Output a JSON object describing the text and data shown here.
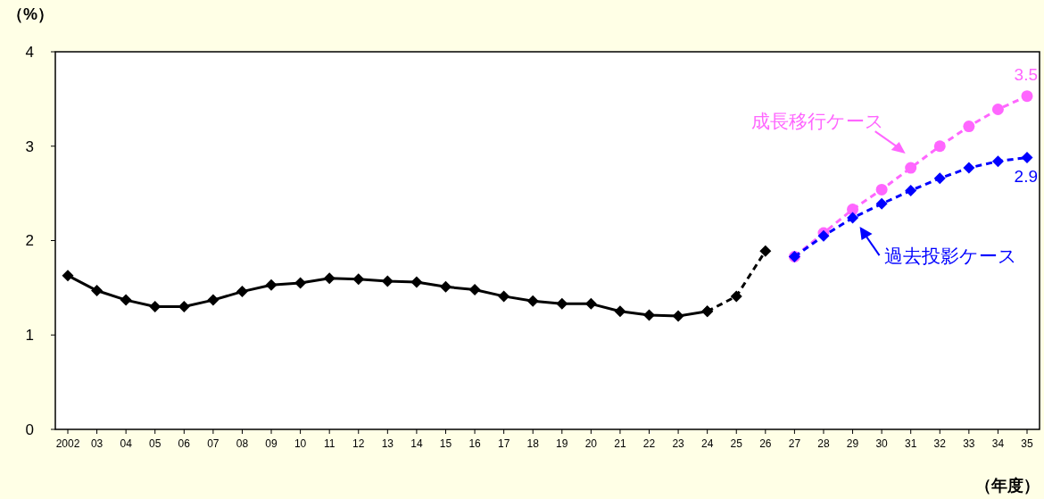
{
  "chart_data": {
    "type": "line",
    "ylabel": "（%）",
    "xlabel": "（年度）",
    "categories": [
      "2002",
      "03",
      "04",
      "05",
      "06",
      "07",
      "08",
      "09",
      "10",
      "11",
      "12",
      "13",
      "14",
      "15",
      "16",
      "17",
      "18",
      "19",
      "20",
      "21",
      "22",
      "23",
      "24",
      "25",
      "26",
      "27",
      "28",
      "29",
      "30",
      "31",
      "32",
      "33",
      "34",
      "35"
    ],
    "series": [
      {
        "color": "#000000",
        "marker": "diamond",
        "line_style": "solid",
        "values": [
          1.63,
          1.47,
          1.37,
          1.3,
          1.3,
          1.37,
          1.46,
          1.53,
          1.55,
          1.6,
          1.59,
          1.57,
          1.56,
          1.51,
          1.48,
          1.41,
          1.36,
          1.33,
          1.33,
          1.25,
          1.21,
          1.2,
          1.25,
          null,
          null,
          null,
          null,
          null,
          null,
          null,
          null,
          null,
          null,
          null
        ]
      },
      {
        "color": "#000000",
        "marker": "diamond",
        "line_style": "dashed",
        "values": [
          null,
          null,
          null,
          null,
          null,
          null,
          null,
          null,
          null,
          null,
          null,
          null,
          null,
          null,
          null,
          null,
          null,
          null,
          null,
          null,
          null,
          null,
          1.25,
          1.41,
          1.89,
          null,
          null,
          null,
          null,
          null,
          null,
          null,
          null,
          null
        ]
      },
      {
        "name": "成長移行ケース",
        "color": "#ff66ff",
        "marker": "circle",
        "line_style": "dashed",
        "values": [
          null,
          null,
          null,
          null,
          null,
          null,
          null,
          null,
          null,
          null,
          null,
          null,
          null,
          null,
          null,
          null,
          null,
          null,
          null,
          null,
          null,
          null,
          null,
          null,
          null,
          1.83,
          2.08,
          2.33,
          2.54,
          2.77,
          3.0,
          3.21,
          3.39,
          3.53
        ],
        "value_labels": [
          null,
          null,
          null,
          null,
          null,
          null,
          null,
          null,
          null,
          null,
          null,
          null,
          null,
          null,
          null,
          null,
          null,
          null,
          null,
          null,
          null,
          null,
          null,
          null,
          null,
          null,
          null,
          null,
          null,
          null,
          null,
          null,
          null,
          "3.5"
        ]
      },
      {
        "name": "過去投影ケース",
        "color": "#0000ff",
        "marker": "diamond",
        "line_style": "dashed",
        "values": [
          null,
          null,
          null,
          null,
          null,
          null,
          null,
          null,
          null,
          null,
          null,
          null,
          null,
          null,
          null,
          null,
          null,
          null,
          null,
          null,
          null,
          null,
          null,
          null,
          null,
          1.83,
          2.05,
          2.24,
          2.39,
          2.53,
          2.66,
          2.77,
          2.84,
          2.88
        ],
        "value_labels": [
          null,
          null,
          null,
          null,
          null,
          null,
          null,
          null,
          null,
          null,
          null,
          null,
          null,
          null,
          null,
          null,
          null,
          null,
          null,
          null,
          null,
          null,
          null,
          null,
          null,
          null,
          null,
          null,
          null,
          null,
          null,
          null,
          null,
          "2.9"
        ]
      }
    ],
    "ylim": [
      0,
      4
    ],
    "yticks": [
      0,
      1,
      2,
      3,
      4
    ],
    "grid": false,
    "legend": "right"
  }
}
